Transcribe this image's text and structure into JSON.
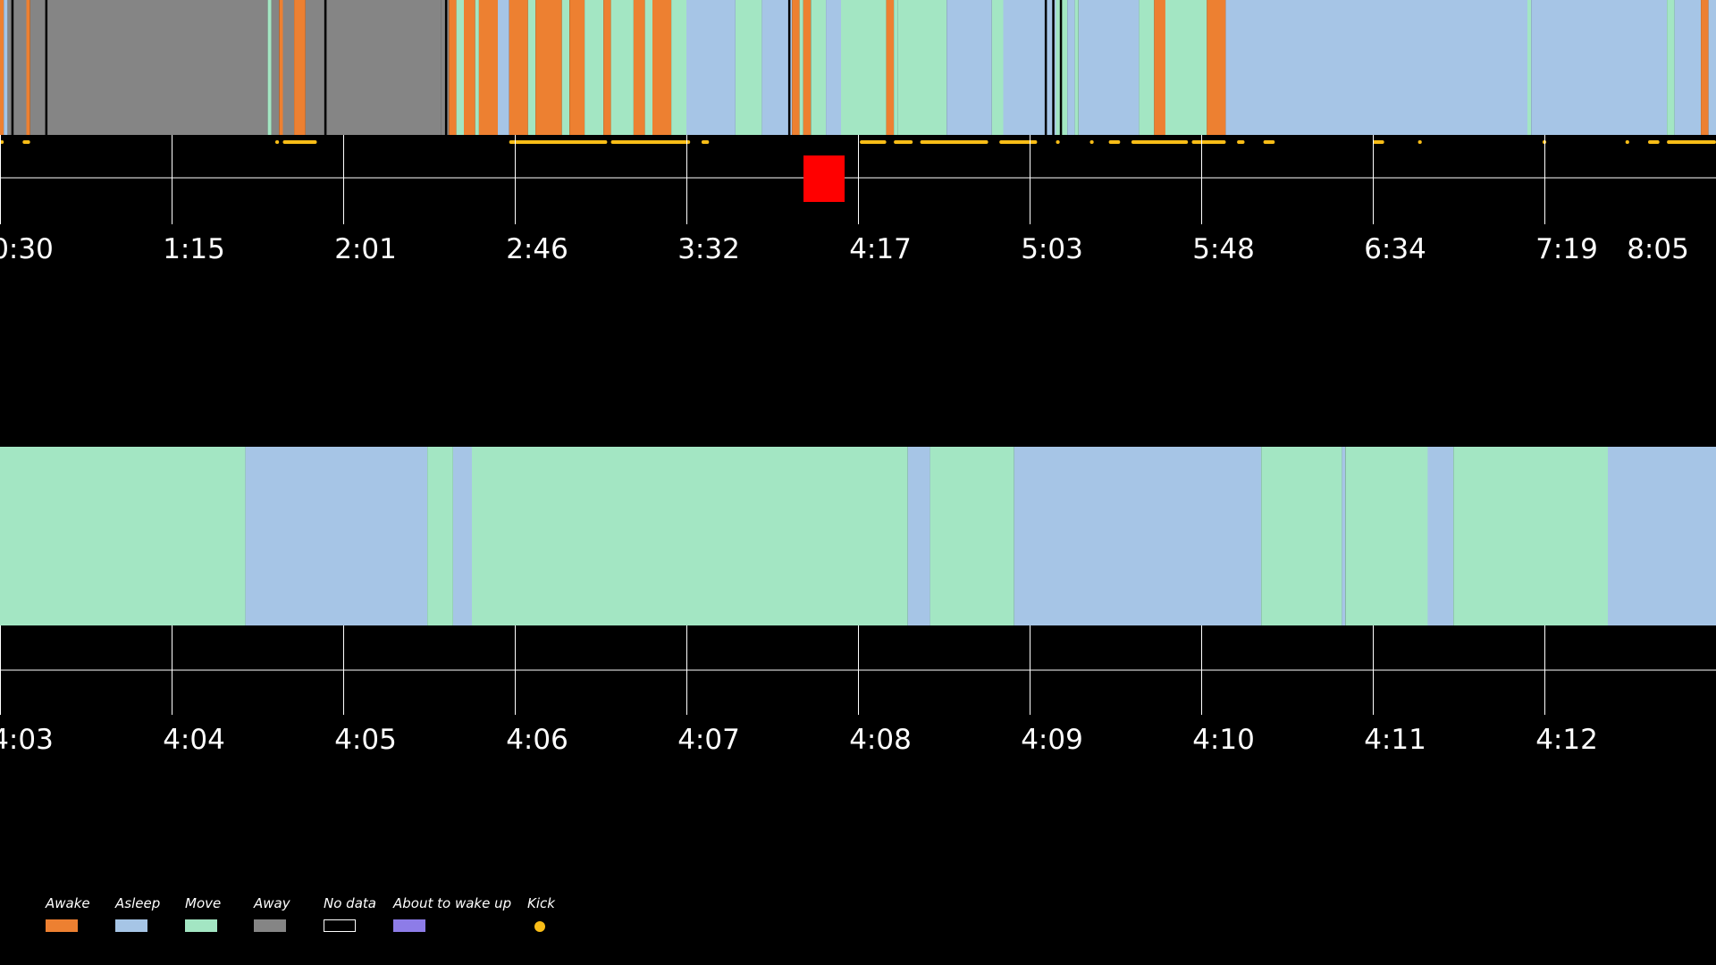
{
  "chart_data": [
    {
      "type": "timeline",
      "panel": "overview",
      "x_unit": "h:mm",
      "x_range": [
        "0:30",
        "8:05"
      ],
      "tick_labels": [
        "0:30",
        "1:15",
        "2:01",
        "2:46",
        "3:32",
        "4:17",
        "5:03",
        "5:48",
        "6:34",
        "7:19",
        "8:05"
      ],
      "segments": [
        [
          "0:30",
          "0:31",
          "awake"
        ],
        [
          "0:31",
          "0:32",
          "asleep"
        ],
        [
          "0:32",
          "0:37",
          "away"
        ],
        [
          "0:37",
          "0:38",
          "awake"
        ],
        [
          "0:38",
          "0:42",
          "away"
        ],
        [
          "0:42",
          "1:41",
          "away"
        ],
        [
          "1:41",
          "1:42",
          "move"
        ],
        [
          "1:42",
          "1:44",
          "away"
        ],
        [
          "1:44",
          "1:45",
          "awake"
        ],
        [
          "1:45",
          "1:48",
          "away"
        ],
        [
          "1:48",
          "1:51",
          "awake"
        ],
        [
          "1:51",
          "1:56",
          "away"
        ],
        [
          "1:56",
          "2:01",
          "away"
        ],
        [
          "2:01",
          "2:27",
          "away"
        ],
        [
          "2:27",
          "2:29",
          "away"
        ],
        [
          "2:29",
          "2:31",
          "awake"
        ],
        [
          "2:31",
          "2:33",
          "move"
        ],
        [
          "2:33",
          "2:36",
          "awake"
        ],
        [
          "2:36",
          "2:37",
          "move"
        ],
        [
          "2:37",
          "2:42",
          "awake"
        ],
        [
          "2:42",
          "2:45",
          "asleep"
        ],
        [
          "2:45",
          "2:50",
          "awake"
        ],
        [
          "2:50",
          "2:52",
          "move"
        ],
        [
          "2:52",
          "2:59",
          "awake"
        ],
        [
          "2:59",
          "3:01",
          "move"
        ],
        [
          "3:01",
          "3:05",
          "awake"
        ],
        [
          "3:05",
          "3:10",
          "move"
        ],
        [
          "3:10",
          "3:12",
          "awake"
        ],
        [
          "3:12",
          "3:18",
          "move"
        ],
        [
          "3:18",
          "3:21",
          "awake"
        ],
        [
          "3:21",
          "3:23",
          "move"
        ],
        [
          "3:23",
          "3:28",
          "awake"
        ],
        [
          "3:28",
          "3:32",
          "move"
        ],
        [
          "3:32",
          "3:45",
          "asleep"
        ],
        [
          "3:45",
          "3:52",
          "move"
        ],
        [
          "3:52",
          "4:00",
          "asleep"
        ],
        [
          "4:00",
          "4:02",
          "awake"
        ],
        [
          "4:02",
          "4:03",
          "move"
        ],
        [
          "4:03",
          "4:05",
          "awake"
        ],
        [
          "4:05",
          "4:09",
          "move"
        ],
        [
          "4:09",
          "4:13",
          "asleep"
        ],
        [
          "4:13",
          "4:25",
          "move"
        ],
        [
          "4:25",
          "4:27",
          "awake"
        ],
        [
          "4:27",
          "4:28",
          "move"
        ],
        [
          "4:28",
          "4:41",
          "move"
        ],
        [
          "4:41",
          "4:53",
          "asleep"
        ],
        [
          "4:53",
          "4:56",
          "move"
        ],
        [
          "4:56",
          "5:10",
          "asleep"
        ],
        [
          "5:10",
          "5:13",
          "move"
        ],
        [
          "5:13",
          "5:15",
          "asleep"
        ],
        [
          "5:15",
          "5:16",
          "move"
        ],
        [
          "5:16",
          "5:32",
          "asleep"
        ],
        [
          "5:32",
          "5:36",
          "move"
        ],
        [
          "5:36",
          "5:39",
          "awake"
        ],
        [
          "5:39",
          "5:50",
          "move"
        ],
        [
          "5:50",
          "5:55",
          "awake"
        ],
        [
          "5:55",
          "6:34",
          "asleep"
        ],
        [
          "6:34",
          "7:15",
          "asleep"
        ],
        [
          "7:15",
          "7:16",
          "move"
        ],
        [
          "7:16",
          "7:52",
          "asleep"
        ],
        [
          "7:52",
          "7:54",
          "move"
        ],
        [
          "7:54",
          "8:01",
          "asleep"
        ],
        [
          "8:01",
          "8:03",
          "awake"
        ],
        [
          "8:03",
          "8:05",
          "asleep"
        ]
      ],
      "no_data_lines": [
        "0:33",
        "0:42",
        "1:56",
        "2:28",
        "3:59",
        "5:07",
        "5:09",
        "5:11"
      ],
      "kicks": [
        [
          "0:30",
          "0:31"
        ],
        [
          "0:36",
          "0:38"
        ],
        [
          "1:43",
          "1:44"
        ],
        [
          "1:45",
          "1:54"
        ],
        [
          "2:45",
          "3:11"
        ],
        [
          "3:12",
          "3:33"
        ],
        [
          "3:36",
          "3:38"
        ],
        [
          "4:18",
          "4:25"
        ],
        [
          "4:27",
          "4:32"
        ],
        [
          "4:34",
          "4:52"
        ],
        [
          "4:55",
          "5:05"
        ],
        [
          "5:10",
          "5:11"
        ],
        [
          "5:19",
          "5:20"
        ],
        [
          "5:24",
          "5:27"
        ],
        [
          "5:30",
          "5:45"
        ],
        [
          "5:46",
          "5:55"
        ],
        [
          "5:58",
          "6:00"
        ],
        [
          "6:05",
          "6:08"
        ],
        [
          "6:34",
          "6:37"
        ],
        [
          "6:46",
          "6:47"
        ],
        [
          "7:19",
          "7:20"
        ],
        [
          "7:41",
          "7:42"
        ],
        [
          "7:47",
          "7:50"
        ],
        [
          "7:52",
          "8:05"
        ]
      ],
      "current_window": [
        "4:03",
        "4:12"
      ]
    },
    {
      "type": "timeline",
      "panel": "detail",
      "x_unit": "h:mm",
      "tick_labels": [
        "4:03",
        "4:04",
        "4:05",
        "4:06",
        "4:07",
        "4:08",
        "4:09",
        "4:10",
        "4:11",
        "4:12"
      ],
      "segments": [
        [
          0.0,
          1.43,
          "move"
        ],
        [
          1.43,
          2.49,
          "asleep"
        ],
        [
          2.49,
          2.64,
          "move"
        ],
        [
          2.64,
          2.75,
          "asleep"
        ],
        [
          2.75,
          5.29,
          "move"
        ],
        [
          5.29,
          5.42,
          "asleep"
        ],
        [
          5.42,
          5.91,
          "move"
        ],
        [
          5.91,
          7.35,
          "asleep"
        ],
        [
          7.35,
          7.82,
          "move"
        ],
        [
          7.82,
          7.84,
          "asleep"
        ],
        [
          7.84,
          8.32,
          "move"
        ],
        [
          8.32,
          8.47,
          "asleep"
        ],
        [
          8.47,
          9.37,
          "move"
        ],
        [
          9.37,
          10.0,
          "asleep"
        ]
      ],
      "x_range_minutes_after_4:03": [
        0,
        10
      ]
    }
  ],
  "legend": [
    {
      "label": "Awake",
      "color": "#ed8031",
      "key": "awake"
    },
    {
      "label": "Asleep",
      "color": "#a6c5e6",
      "key": "asleep"
    },
    {
      "label": "Move",
      "color": "#a3e6c3",
      "key": "move"
    },
    {
      "label": "Away",
      "color": "#858585",
      "key": "away"
    },
    {
      "label": "No data",
      "color": "#000000",
      "key": "nodata"
    },
    {
      "label": "About to wake up",
      "color": "#8d7ce8",
      "key": "wakeup"
    },
    {
      "label": "Kick",
      "color": "#f9bd17",
      "key": "kick"
    }
  ],
  "colors": {
    "awake": "#ed8031",
    "asleep": "#a6c5e6",
    "move": "#a3e6c3",
    "away": "#858585",
    "nodata": "#000000",
    "wakeup": "#8d7ce8",
    "kick": "#f9bd17",
    "marker": "#ff0000",
    "axis": "#ffffff"
  }
}
